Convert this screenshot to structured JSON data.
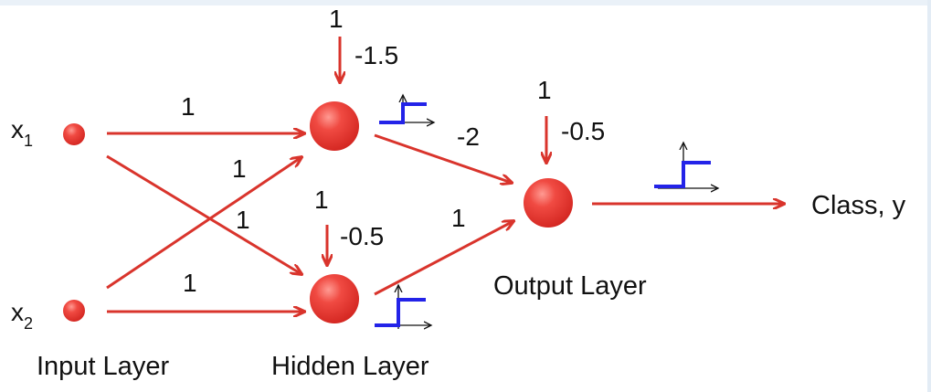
{
  "inputs": {
    "x1": {
      "base": "x",
      "sub": "1"
    },
    "x2": {
      "base": "x",
      "sub": "2"
    }
  },
  "weights": {
    "x1_h1": "1",
    "x2_h1": "1",
    "x1_h2": "1",
    "x2_h2": "1",
    "h1_out": "-2",
    "h2_out": "1"
  },
  "bias": {
    "h1": {
      "input": "1",
      "weight": "-1.5"
    },
    "h2": {
      "input": "1",
      "weight": "-0.5"
    },
    "out": {
      "input": "1",
      "weight": "-0.5"
    }
  },
  "labels": {
    "input_layer": "Input Layer",
    "hidden_layer": "Hidden Layer",
    "output_layer": "Output Layer",
    "class_output": "Class, y"
  },
  "colors": {
    "arrow": "#d9342c",
    "node": "#e8322e",
    "step": "#2323e8",
    "axis": "#111111"
  },
  "icons": {
    "activation": "step-function-icon"
  }
}
